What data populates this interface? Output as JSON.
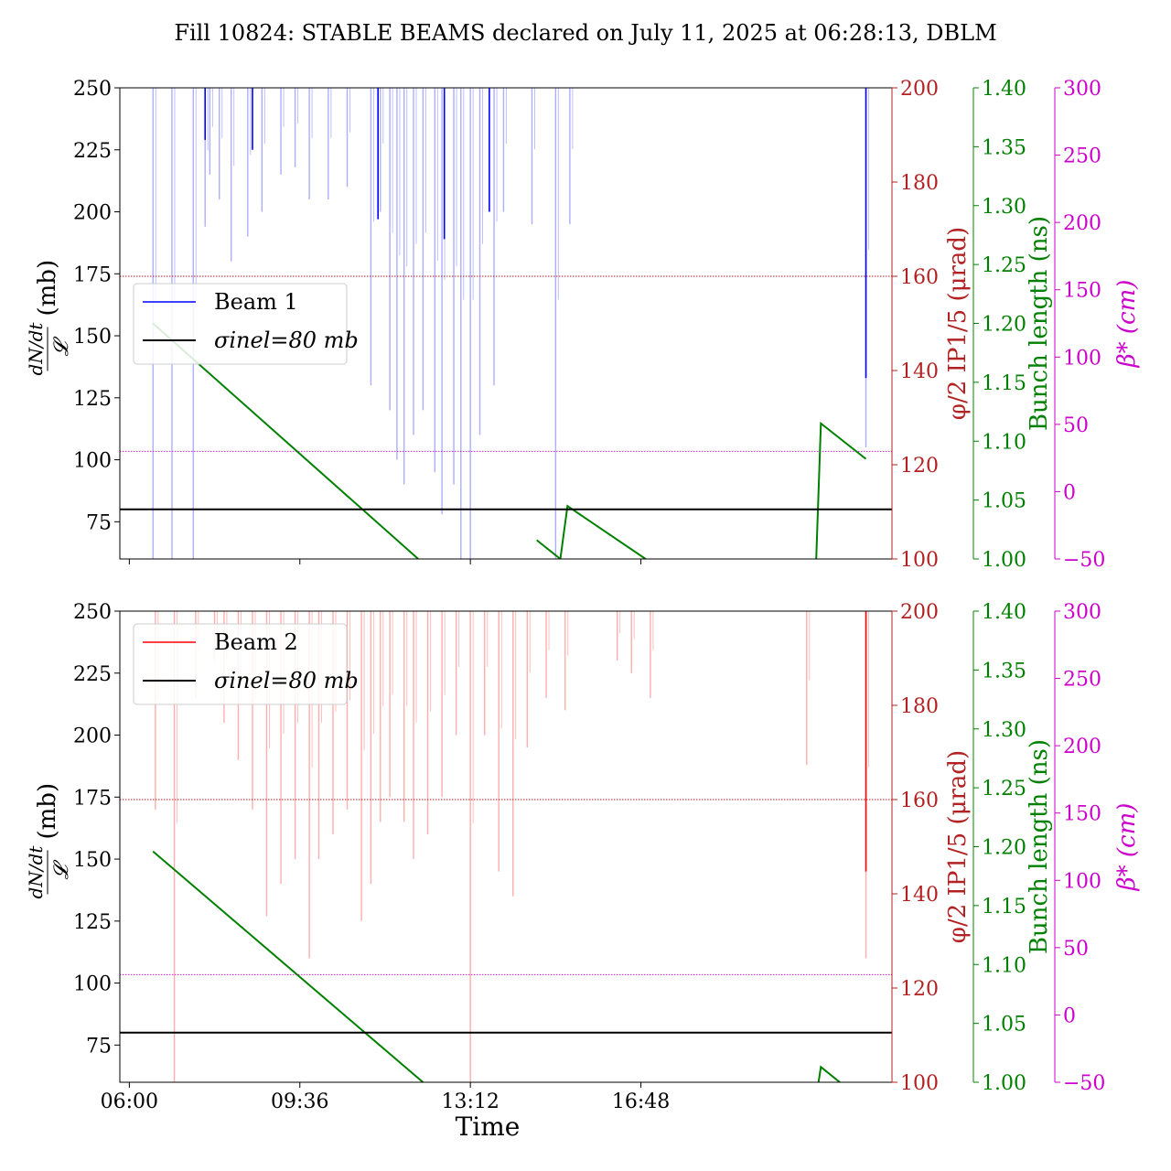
{
  "title": "Fill 10824: STABLE BEAMS declared on July 11, 2025 at 06:28:13, DBLM",
  "colors": {
    "beam1": "#0000ff",
    "beam2": "#ff0000",
    "sigma": "#000000",
    "phi_axis": "#b22222",
    "bunch_axis": "#008000",
    "beta_axis": "#cc00cc"
  },
  "chart_data": [
    {
      "type": "line",
      "panel": "top",
      "ylabel": "dN/dt / 𝓛 (mb)",
      "ylim": [
        60,
        250
      ],
      "yticks": [
        "75",
        "100",
        "125",
        "150",
        "175",
        "200",
        "225",
        "250"
      ],
      "xlim_hours": [
        5.8,
        22.1
      ],
      "xticks": [],
      "xlabel": "",
      "right_axes": [
        {
          "label": "φ/2 IP1/5 (μrad)",
          "ylim": [
            100,
            200
          ],
          "ticks": [
            "100",
            "120",
            "140",
            "160",
            "180",
            "200"
          ],
          "color": "#b22222"
        },
        {
          "label": "Bunch length (ns)",
          "ylim": [
            1.0,
            1.4
          ],
          "ticks": [
            "1.00",
            "1.05",
            "1.10",
            "1.15",
            "1.20",
            "1.25",
            "1.30",
            "1.35",
            "1.40"
          ],
          "color": "#008000"
        },
        {
          "label": "β* (cm)",
          "ylim": [
            -50,
            300
          ],
          "ticks": [
            "−50",
            "0",
            "50",
            "100",
            "150",
            "200",
            "250",
            "300"
          ],
          "color": "#cc00cc"
        }
      ],
      "legend": {
        "placement": "center-left",
        "entries": [
          "Beam 1",
          "σinel=80 mb"
        ]
      },
      "sigma_inel_mb": 80,
      "phi_ref_urad": 160,
      "beta_ref_cm": 30,
      "series": [
        {
          "name": "Beam 1",
          "color": "#0000ff",
          "spikes_hours": [
            [
              6.5,
              60
            ],
            [
              6.9,
              60
            ],
            [
              7.35,
              60
            ],
            [
              7.6,
              194
            ],
            [
              7.7,
              215
            ],
            [
              7.9,
              205
            ],
            [
              8.15,
              180
            ],
            [
              8.5,
              190
            ],
            [
              8.8,
              200
            ],
            [
              9.2,
              215
            ],
            [
              9.5,
              218
            ],
            [
              9.8,
              205
            ],
            [
              10.2,
              205
            ],
            [
              10.6,
              210
            ],
            [
              11.1,
              130
            ],
            [
              11.3,
              200
            ],
            [
              11.5,
              120
            ],
            [
              11.65,
              100
            ],
            [
              11.8,
              90
            ],
            [
              12.0,
              110
            ],
            [
              12.2,
              120
            ],
            [
              12.45,
              95
            ],
            [
              12.6,
              78
            ],
            [
              12.85,
              90
            ],
            [
              13.0,
              60
            ],
            [
              13.2,
              60
            ],
            [
              13.4,
              110
            ],
            [
              13.7,
              130
            ],
            [
              13.9,
              200
            ],
            [
              14.5,
              195
            ],
            [
              15.0,
              60
            ],
            [
              15.3,
              195
            ],
            [
              21.55,
              105
            ]
          ],
          "solid_lines_hours": [
            [
              7.6,
              229
            ],
            [
              8.6,
              225
            ],
            [
              11.25,
              197
            ],
            [
              12.65,
              189
            ],
            [
              13.6,
              200
            ],
            [
              21.55,
              133
            ]
          ]
        },
        {
          "name": "Bunch length",
          "color": "#008000",
          "segments_hours_ns": [
            [
              [
                6.5,
                1.2
              ],
              [
                12.1,
                1.0
              ]
            ],
            [
              [
                14.6,
                1.016
              ],
              [
                15.1,
                1.0
              ]
            ],
            [
              [
                15.1,
                1.0
              ],
              [
                15.25,
                1.045
              ],
              [
                16.9,
                1.0
              ]
            ],
            [
              [
                20.5,
                1.0
              ],
              [
                20.6,
                1.115
              ],
              [
                21.55,
                1.085
              ]
            ]
          ]
        }
      ]
    },
    {
      "type": "line",
      "panel": "bottom",
      "ylabel": "dN/dt / 𝓛 (mb)",
      "ylim": [
        60,
        250
      ],
      "yticks": [
        "75",
        "100",
        "125",
        "150",
        "175",
        "200",
        "225",
        "250"
      ],
      "xlim_hours": [
        5.8,
        22.1
      ],
      "xticks": [
        "06:00",
        "09:36",
        "13:12",
        "16:48"
      ],
      "xticks_hours": [
        6.0,
        9.6,
        13.2,
        16.8
      ],
      "xlabel": "Time",
      "right_axes": [
        {
          "label": "φ/2 IP1/5 (μrad)",
          "ylim": [
            100,
            200
          ],
          "ticks": [
            "100",
            "120",
            "140",
            "160",
            "180",
            "200"
          ],
          "color": "#b22222"
        },
        {
          "label": "Bunch length (ns)",
          "ylim": [
            1.0,
            1.4
          ],
          "ticks": [
            "1.00",
            "1.05",
            "1.10",
            "1.15",
            "1.20",
            "1.25",
            "1.30",
            "1.35",
            "1.40"
          ],
          "color": "#008000"
        },
        {
          "label": "β* (cm)",
          "ylim": [
            -50,
            300
          ],
          "ticks": [
            "−50",
            "0",
            "50",
            "100",
            "150",
            "200",
            "250",
            "300"
          ],
          "color": "#cc00cc"
        }
      ],
      "legend": {
        "placement": "top-left",
        "entries": [
          "Beam 2",
          "σinel=80 mb"
        ]
      },
      "sigma_inel_mb": 80,
      "phi_ref_urad": 160,
      "beta_ref_cm": 30,
      "series": [
        {
          "name": "Beam 2",
          "color": "#ff0000",
          "spikes_hours": [
            [
              6.55,
              170
            ],
            [
              6.95,
              60
            ],
            [
              7.4,
              215
            ],
            [
              7.8,
              230
            ],
            [
              8.0,
              205
            ],
            [
              8.3,
              190
            ],
            [
              8.6,
              170
            ],
            [
              8.9,
              127
            ],
            [
              9.2,
              140
            ],
            [
              9.5,
              150
            ],
            [
              9.8,
              110
            ],
            [
              10.0,
              150
            ],
            [
              10.3,
              160
            ],
            [
              10.6,
              170
            ],
            [
              10.9,
              125
            ],
            [
              11.1,
              140
            ],
            [
              11.3,
              165
            ],
            [
              11.5,
              175
            ],
            [
              11.8,
              165
            ],
            [
              12.0,
              150
            ],
            [
              12.3,
              160
            ],
            [
              12.6,
              175
            ],
            [
              12.9,
              200
            ],
            [
              13.2,
              60
            ],
            [
              13.5,
              200
            ],
            [
              13.8,
              145
            ],
            [
              14.1,
              135
            ],
            [
              14.4,
              195
            ],
            [
              14.8,
              215
            ],
            [
              15.2,
              210
            ],
            [
              16.3,
              230
            ],
            [
              16.6,
              225
            ],
            [
              17.0,
              215
            ],
            [
              20.3,
              188
            ],
            [
              21.55,
              110
            ]
          ],
          "solid_lines_hours": [
            [
              21.55,
              145
            ]
          ]
        },
        {
          "name": "Bunch length",
          "color": "#008000",
          "segments_hours_ns": [
            [
              [
                6.5,
                1.196
              ],
              [
                12.2,
                1.0
              ]
            ],
            [
              [
                20.55,
                1.0
              ],
              [
                20.6,
                1.013
              ],
              [
                21.0,
                1.0
              ]
            ]
          ]
        }
      ]
    }
  ]
}
